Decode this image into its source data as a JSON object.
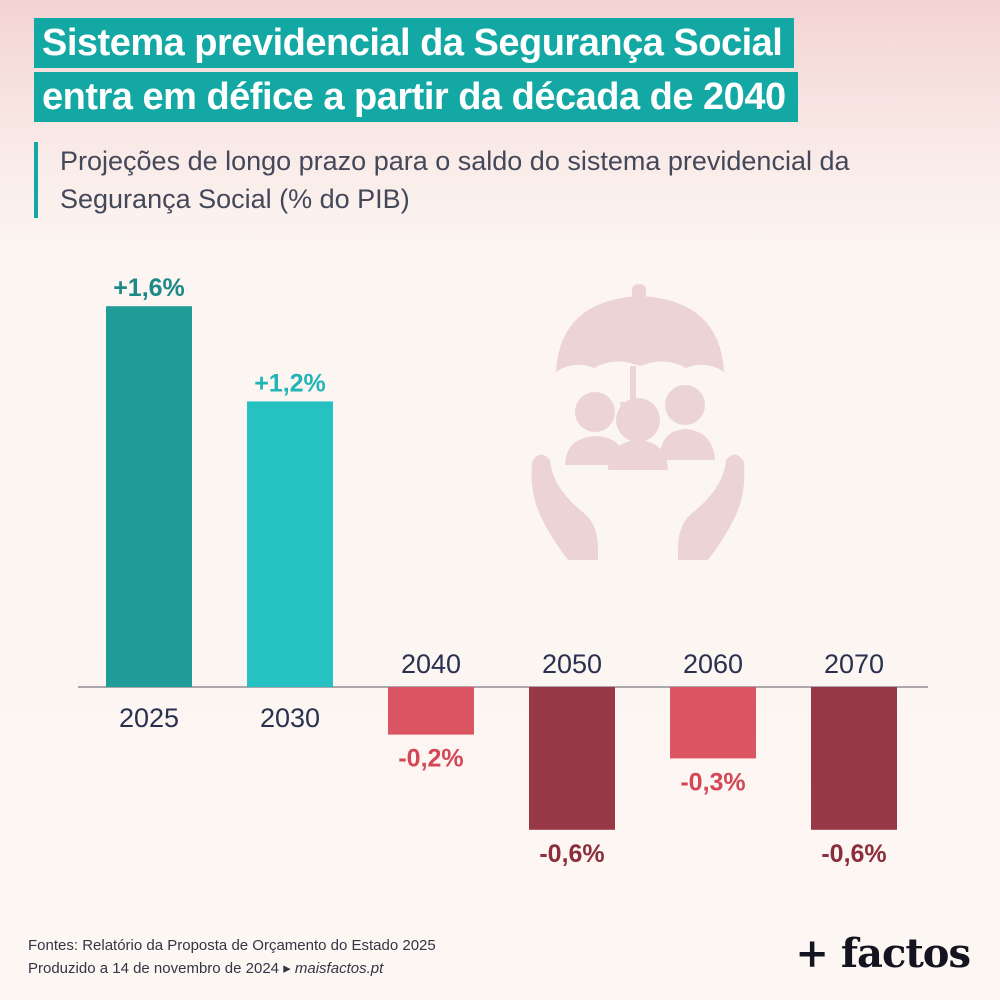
{
  "title": {
    "line1": "Sistema previdencial da Segurança Social",
    "line2": "entra em défice a partir da década de 2040"
  },
  "subtitle": "Projeções de longo prazo para o saldo do sistema previdencial da Segurança Social (% do PIB)",
  "chart_data": {
    "type": "bar",
    "categories": [
      "2025",
      "2030",
      "2040",
      "2050",
      "2060",
      "2070"
    ],
    "values": [
      1.6,
      1.2,
      -0.2,
      -0.6,
      -0.3,
      -0.6
    ],
    "value_labels": [
      "+1,6%",
      "+1,2%",
      "-0,2%",
      "-0,6%",
      "-0,3%",
      "-0,6%"
    ],
    "ylim": [
      -0.6,
      1.6
    ],
    "grid": false,
    "legend": "none",
    "bar_colors": [
      "#1f9b98",
      "#26c1c3",
      "#db5563",
      "#973846",
      "#db5563",
      "#973846"
    ],
    "label_colors": [
      "#1b8a87",
      "#22b5b7",
      "#d34756",
      "#8a2e3b",
      "#d34756",
      "#8a2e3b"
    ]
  },
  "icon": "umbrella-hands-people-icon",
  "footer": {
    "sources": "Fontes: Relatório da Proposta de Orçamento do Estado 2025",
    "produced": "Produzido a 14 de novembro de 2024",
    "arrow": "▸",
    "site": "maisfactos.pt"
  },
  "brand": "+ factos"
}
